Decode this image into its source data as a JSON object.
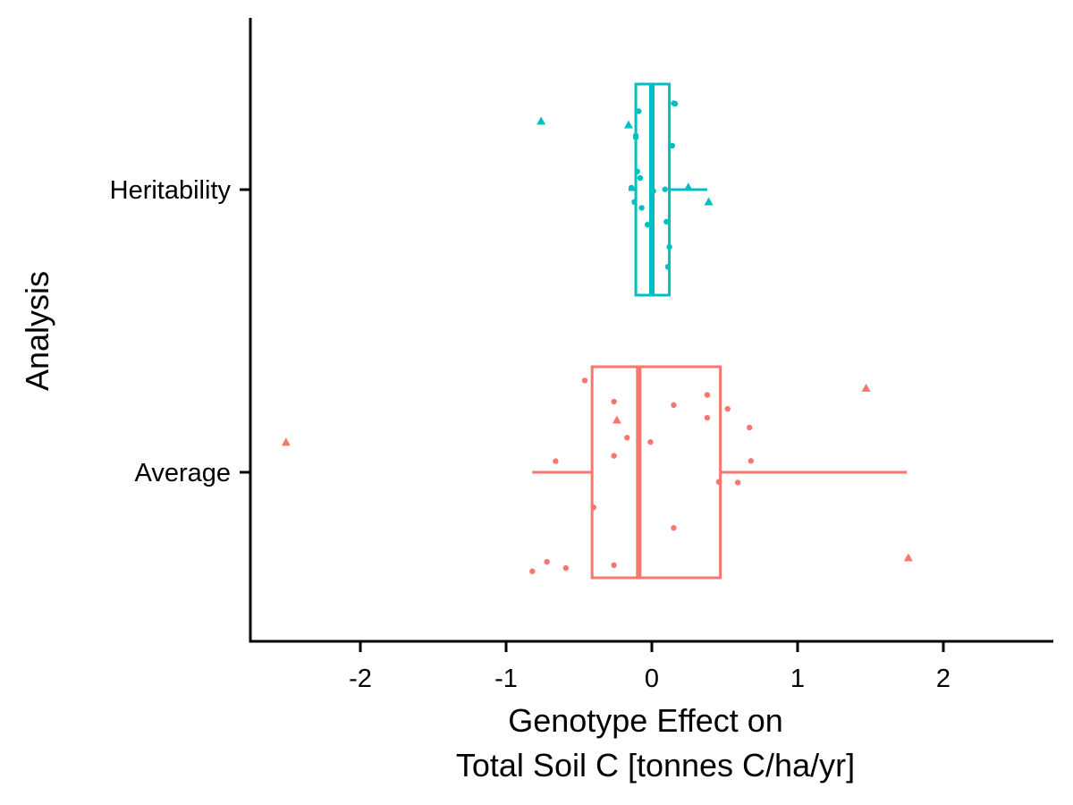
{
  "chart_data": {
    "type": "boxplot",
    "orientation": "horizontal",
    "title": "",
    "xlabel_line1": "Genotype Effect on",
    "xlabel_line2": "Total Soil C [tonnes C/ha/yr]",
    "ylabel": "Analysis",
    "xlim": [
      -2.75,
      2.75
    ],
    "xticks": [
      -2,
      -1,
      0,
      1,
      2
    ],
    "xtick_labels": [
      "-2",
      "-1",
      "0",
      "1",
      "2"
    ],
    "categories": [
      "Heritability",
      "Average"
    ],
    "grid": false,
    "legend": "none",
    "groups": [
      {
        "category": "Heritability",
        "color": "#00BFC4",
        "box": {
          "whisker_low": -0.16,
          "q1": -0.11,
          "median": 0.0,
          "q3": 0.12,
          "whisker_high": 0.38
        },
        "outliers": [
          -0.76,
          0.39,
          0.25,
          -0.16
        ],
        "points": [
          -0.14,
          -0.12,
          -0.09,
          -0.11,
          -0.08,
          0.01,
          0.16,
          0.11,
          -0.07,
          -0.1,
          0.14,
          0.12,
          0.1,
          0.15,
          0.09,
          -0.11,
          -0.03
        ]
      },
      {
        "category": "Average",
        "color": "#F8766D",
        "box": {
          "whisker_low": -0.82,
          "q1": -0.41,
          "median": -0.09,
          "q3": 0.47,
          "whisker_high": 1.75
        },
        "outliers": [
          -2.51,
          1.47,
          1.76,
          -0.24
        ],
        "points": [
          -0.46,
          -0.72,
          -0.59,
          0.38,
          0.68,
          -0.26,
          0.52,
          -0.26,
          0.59,
          -0.4,
          0.67,
          0.15,
          -0.82,
          -0.66,
          0.38,
          0.46,
          -0.17,
          -0.26,
          0.15,
          -0.01
        ]
      }
    ]
  }
}
